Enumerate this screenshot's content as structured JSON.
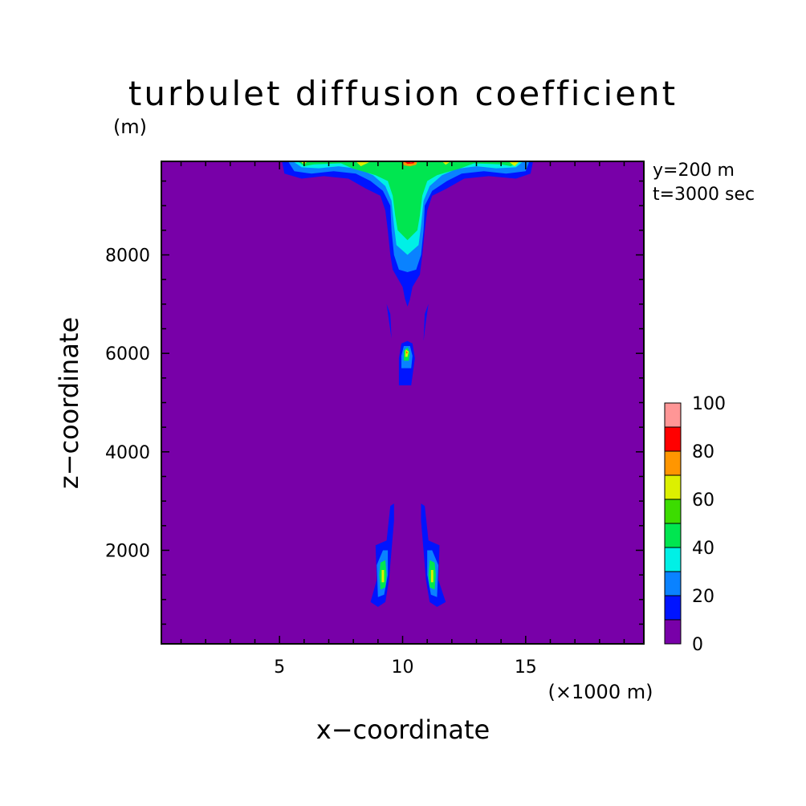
{
  "chart_data": {
    "type": "contour",
    "title": "turbulet diffusion coefficient",
    "xlabel": "x−coordinate",
    "ylabel": "z−coordinate",
    "x_unit": "(×1000 m)",
    "y_unit": "(m)",
    "annotations": [
      "y=200 m",
      "t=3000 sec"
    ],
    "xlim": [
      0.2,
      19.8
    ],
    "ylim": [
      100,
      9900
    ],
    "x_ticks": [
      5,
      10,
      15
    ],
    "y_ticks": [
      2000,
      4000,
      6000,
      8000
    ],
    "background_color": "#7800a8",
    "colorbar": {
      "levels": [
        0,
        10,
        20,
        30,
        40,
        50,
        60,
        70,
        80,
        90,
        100
      ],
      "labels": [
        "0",
        "20",
        "40",
        "60",
        "80",
        "100"
      ],
      "colors": [
        "#7800a8",
        "#0014ff",
        "#0a82ff",
        "#00f0e6",
        "#00e650",
        "#3cdc00",
        "#dcf000",
        "#ff9600",
        "#ff0000",
        "#ff9696"
      ]
    },
    "regions": [
      {
        "level": 10,
        "color": "#0014ff",
        "points": [
          [
            5.1,
            9900
          ],
          [
            5.2,
            9650
          ],
          [
            5.9,
            9550
          ],
          [
            6.8,
            9600
          ],
          [
            7.8,
            9550
          ],
          [
            8.5,
            9350
          ],
          [
            9.1,
            9200
          ],
          [
            9.3,
            8900
          ],
          [
            9.4,
            8500
          ],
          [
            9.5,
            8000
          ],
          [
            9.6,
            7700
          ],
          [
            10.0,
            7350
          ],
          [
            10.1,
            7100
          ],
          [
            10.2,
            6950
          ],
          [
            10.3,
            7100
          ],
          [
            10.4,
            7350
          ],
          [
            10.7,
            7600
          ],
          [
            10.8,
            8000
          ],
          [
            10.9,
            8500
          ],
          [
            11.0,
            8900
          ],
          [
            11.2,
            9200
          ],
          [
            11.8,
            9350
          ],
          [
            12.5,
            9550
          ],
          [
            13.5,
            9600
          ],
          [
            14.6,
            9550
          ],
          [
            15.2,
            9650
          ],
          [
            15.3,
            9900
          ]
        ]
      },
      {
        "level": 20,
        "color": "#0a82ff",
        "points": [
          [
            5.35,
            9900
          ],
          [
            5.6,
            9700
          ],
          [
            6.3,
            9650
          ],
          [
            7.2,
            9700
          ],
          [
            8.1,
            9650
          ],
          [
            8.7,
            9500
          ],
          [
            9.2,
            9300
          ],
          [
            9.5,
            9000
          ],
          [
            9.55,
            8500
          ],
          [
            9.65,
            8000
          ],
          [
            9.85,
            7700
          ],
          [
            10.2,
            7650
          ],
          [
            10.55,
            7700
          ],
          [
            10.75,
            8000
          ],
          [
            10.85,
            8500
          ],
          [
            10.9,
            9000
          ],
          [
            11.2,
            9300
          ],
          [
            11.8,
            9500
          ],
          [
            12.4,
            9650
          ],
          [
            13.3,
            9700
          ],
          [
            14.2,
            9650
          ],
          [
            15.0,
            9700
          ],
          [
            15.15,
            9900
          ]
        ]
      },
      {
        "level": 30,
        "color": "#00f0e6",
        "points": [
          [
            5.55,
            9900
          ],
          [
            5.9,
            9780
          ],
          [
            6.6,
            9760
          ],
          [
            7.4,
            9800
          ],
          [
            8.2,
            9750
          ],
          [
            8.8,
            9620
          ],
          [
            9.3,
            9400
          ],
          [
            9.55,
            9100
          ],
          [
            9.65,
            8600
          ],
          [
            9.75,
            8200
          ],
          [
            10.2,
            8000
          ],
          [
            10.65,
            8200
          ],
          [
            10.75,
            8600
          ],
          [
            10.85,
            9100
          ],
          [
            11.1,
            9400
          ],
          [
            11.6,
            9620
          ],
          [
            12.2,
            9750
          ],
          [
            13.0,
            9800
          ],
          [
            13.8,
            9760
          ],
          [
            14.6,
            9780
          ],
          [
            14.9,
            9900
          ]
        ]
      },
      {
        "level": 40,
        "color": "#00e650",
        "points": [
          [
            5.75,
            9900
          ],
          [
            6.0,
            9800
          ],
          [
            6.4,
            9840
          ],
          [
            7.5,
            9860
          ],
          [
            8.0,
            9750
          ],
          [
            8.5,
            9680
          ],
          [
            8.9,
            9620
          ],
          [
            9.4,
            9500
          ],
          [
            9.6,
            9200
          ],
          [
            9.7,
            8800
          ],
          [
            9.8,
            8500
          ],
          [
            10.2,
            8300
          ],
          [
            10.6,
            8500
          ],
          [
            10.7,
            8800
          ],
          [
            10.8,
            9200
          ],
          [
            11.0,
            9500
          ],
          [
            11.4,
            9620
          ],
          [
            11.8,
            9680
          ],
          [
            12.3,
            9750
          ],
          [
            12.9,
            9860
          ],
          [
            14.0,
            9840
          ],
          [
            14.4,
            9800
          ],
          [
            14.7,
            9900
          ]
        ]
      },
      {
        "level": 60,
        "color": "#dcf000",
        "points": [
          [
            5.85,
            9900
          ],
          [
            6.0,
            9840
          ],
          [
            6.15,
            9900
          ]
        ]
      },
      {
        "level": 60,
        "color": "#dcf000",
        "points": [
          [
            8.1,
            9900
          ],
          [
            8.3,
            9800
          ],
          [
            8.55,
            9860
          ],
          [
            8.7,
            9900
          ]
        ]
      },
      {
        "level": 60,
        "color": "#dcf000",
        "points": [
          [
            11.6,
            9900
          ],
          [
            11.75,
            9830
          ],
          [
            11.95,
            9900
          ]
        ]
      },
      {
        "level": 60,
        "color": "#dcf000",
        "points": [
          [
            14.3,
            9900
          ],
          [
            14.55,
            9800
          ],
          [
            14.75,
            9900
          ]
        ]
      },
      {
        "level": 70,
        "color": "#ff9600",
        "points": [
          [
            10.0,
            9900
          ],
          [
            10.05,
            9820
          ],
          [
            10.3,
            9800
          ],
          [
            10.55,
            9830
          ],
          [
            10.6,
            9900
          ]
        ]
      },
      {
        "level": 80,
        "color": "#ff0000",
        "points": [
          [
            10.05,
            9900
          ],
          [
            10.2,
            9850
          ],
          [
            10.45,
            9860
          ],
          [
            10.5,
            9900
          ]
        ]
      },
      {
        "level": 90,
        "color": "#ff9696",
        "points": [
          [
            10.2,
            9900
          ],
          [
            10.35,
            9875
          ],
          [
            10.4,
            9900
          ]
        ]
      },
      {
        "level": 10,
        "color": "#0014ff",
        "points": [
          [
            9.35,
            7000
          ],
          [
            9.45,
            6650
          ],
          [
            9.55,
            6300
          ],
          [
            9.5,
            6800
          ]
        ]
      },
      {
        "level": 10,
        "color": "#0014ff",
        "points": [
          [
            11.05,
            7000
          ],
          [
            10.95,
            6650
          ],
          [
            10.85,
            6250
          ],
          [
            10.9,
            6800
          ]
        ]
      },
      {
        "level": 10,
        "color": "#0014ff",
        "points": [
          [
            9.85,
            5350
          ],
          [
            10.35,
            5350
          ],
          [
            10.5,
            5900
          ],
          [
            10.4,
            6200
          ],
          [
            10.2,
            6250
          ],
          [
            9.95,
            6200
          ],
          [
            9.85,
            5900
          ]
        ]
      },
      {
        "level": 20,
        "color": "#0a82ff",
        "points": [
          [
            9.95,
            5700
          ],
          [
            10.35,
            5700
          ],
          [
            10.4,
            5950
          ],
          [
            10.3,
            6150
          ],
          [
            10.05,
            6150
          ],
          [
            9.95,
            5950
          ]
        ]
      },
      {
        "level": 40,
        "color": "#00e650",
        "points": [
          [
            10.05,
            5850
          ],
          [
            10.25,
            5850
          ],
          [
            10.3,
            6020
          ],
          [
            10.2,
            6120
          ],
          [
            10.05,
            6050
          ]
        ]
      },
      {
        "level": 60,
        "color": "#dcf000",
        "points": [
          [
            10.1,
            5930
          ],
          [
            10.2,
            5930
          ],
          [
            10.25,
            6040
          ],
          [
            10.12,
            6080
          ]
        ]
      },
      {
        "level": 80,
        "color": "#ff0000",
        "points": [
          [
            10.15,
            6000
          ],
          [
            10.2,
            6010
          ],
          [
            10.17,
            6050
          ]
        ]
      },
      {
        "level": 10,
        "color": "#0014ff",
        "points": [
          [
            8.7,
            950
          ],
          [
            9.0,
            850
          ],
          [
            9.3,
            950
          ],
          [
            9.45,
            1400
          ],
          [
            9.55,
            2000
          ],
          [
            9.65,
            2600
          ],
          [
            9.65,
            2950
          ],
          [
            9.5,
            2900
          ],
          [
            9.35,
            2200
          ],
          [
            8.9,
            2100
          ],
          [
            8.95,
            1400
          ]
        ]
      },
      {
        "level": 10,
        "color": "#0014ff",
        "points": [
          [
            11.75,
            950
          ],
          [
            11.4,
            850
          ],
          [
            11.1,
            950
          ],
          [
            10.95,
            1400
          ],
          [
            10.85,
            2000
          ],
          [
            10.75,
            2600
          ],
          [
            10.75,
            2950
          ],
          [
            10.9,
            2900
          ],
          [
            11.05,
            2200
          ],
          [
            11.5,
            2100
          ],
          [
            11.45,
            1400
          ]
        ]
      },
      {
        "level": 20,
        "color": "#0a82ff",
        "points": [
          [
            9.0,
            1050
          ],
          [
            9.25,
            1100
          ],
          [
            9.4,
            1500
          ],
          [
            9.4,
            2000
          ],
          [
            9.2,
            2000
          ],
          [
            8.95,
            1700
          ]
        ]
      },
      {
        "level": 20,
        "color": "#0a82ff",
        "points": [
          [
            11.4,
            1050
          ],
          [
            11.15,
            1100
          ],
          [
            11.0,
            1500
          ],
          [
            11.0,
            2000
          ],
          [
            11.2,
            2000
          ],
          [
            11.45,
            1700
          ]
        ]
      },
      {
        "level": 40,
        "color": "#00e650",
        "points": [
          [
            9.1,
            1200
          ],
          [
            9.3,
            1250
          ],
          [
            9.35,
            1500
          ],
          [
            9.3,
            1800
          ],
          [
            9.1,
            1750
          ],
          [
            9.05,
            1500
          ]
        ]
      },
      {
        "level": 40,
        "color": "#00e650",
        "points": [
          [
            11.3,
            1200
          ],
          [
            11.1,
            1250
          ],
          [
            11.05,
            1500
          ],
          [
            11.1,
            1800
          ],
          [
            11.3,
            1750
          ],
          [
            11.35,
            1500
          ]
        ]
      },
      {
        "level": 60,
        "color": "#dcf000",
        "points": [
          [
            9.15,
            1350
          ],
          [
            9.25,
            1350
          ],
          [
            9.25,
            1600
          ],
          [
            9.15,
            1600
          ]
        ]
      },
      {
        "level": 60,
        "color": "#dcf000",
        "points": [
          [
            11.25,
            1350
          ],
          [
            11.15,
            1350
          ],
          [
            11.15,
            1600
          ],
          [
            11.25,
            1600
          ]
        ]
      }
    ]
  }
}
